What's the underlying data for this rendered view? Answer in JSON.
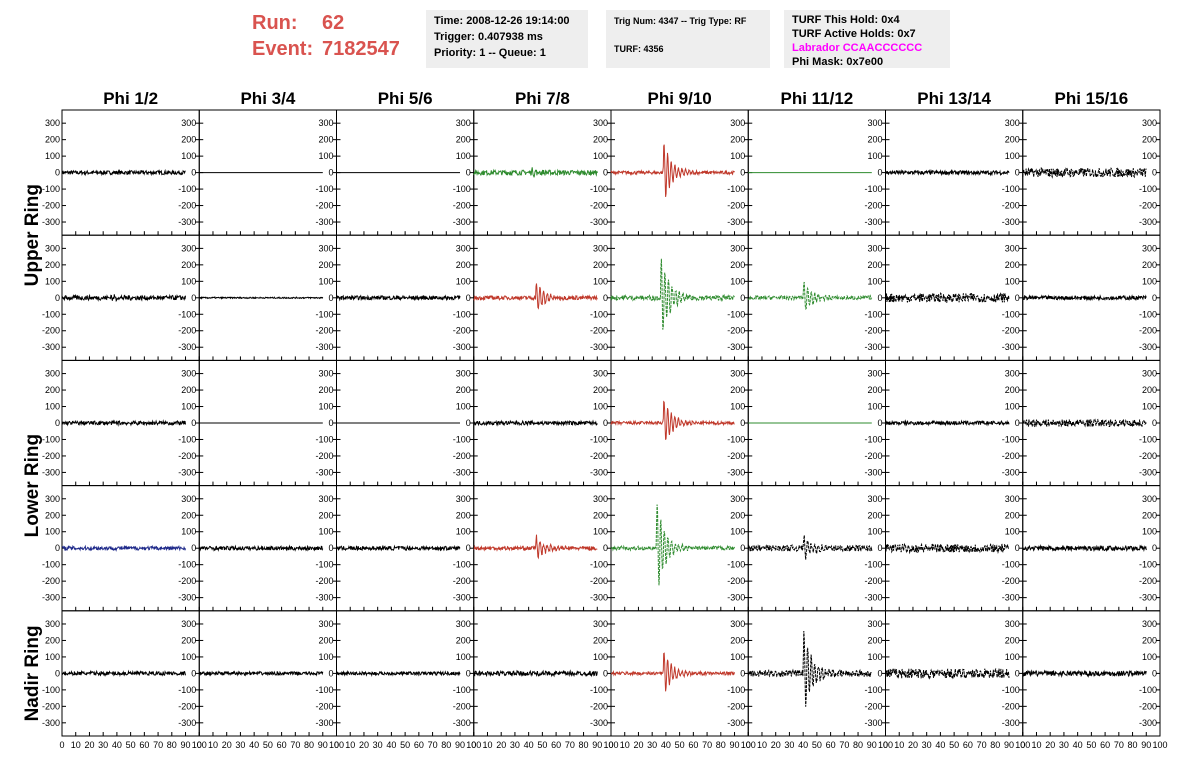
{
  "header": {
    "run_label": "Run:",
    "run_value": "62",
    "event_label": "Event:",
    "event_value": "7182547",
    "time": "Time: 2008-12-26 19:14:00",
    "trigger": "Trigger: 0.407938 ms",
    "priority": "Priority: 1 -- Queue: 1",
    "trig_num": "Trig Num: 4347 -- Trig Type: RF",
    "turf": "TURF: 4356",
    "turf_hold": "TURF This Hold: 0x4",
    "turf_active": "TURF Active Holds: 0x7",
    "labrador": "Labrador CCAACCCCCC",
    "phi_mask": "Phi Mask: 0x7e00"
  },
  "colors": {
    "accent": "#d9534f",
    "magenta": "#ff00ff",
    "black": "#000000",
    "red": "#c0392b",
    "green": "#2e8b2e",
    "blue": "#1f2a8a"
  },
  "chart_data": {
    "type": "line",
    "columns": [
      "Phi 1/2",
      "Phi 3/4",
      "Phi 5/6",
      "Phi 7/8",
      "Phi 9/10",
      "Phi 11/12",
      "Phi 13/14",
      "Phi 15/16"
    ],
    "ring_labels": [
      "Upper Ring",
      "Lower Ring",
      "Nadir Ring"
    ],
    "ylim": [
      -380,
      380
    ],
    "xlim": [
      0,
      100
    ],
    "yticks": [
      -300,
      -200,
      -100,
      0,
      100,
      200,
      300
    ],
    "xticks": [
      0,
      10,
      20,
      30,
      40,
      50,
      60,
      70,
      80,
      90,
      100
    ],
    "xtick_labels": [
      "0",
      "10",
      "20",
      "30",
      "40",
      "50",
      "60",
      "70",
      "80",
      "90",
      "100"
    ],
    "panels": [
      [
        {
          "color": "black",
          "style": "solid",
          "noise": 12,
          "pulse": 0,
          "pulse_t": 45
        },
        {
          "color": "black",
          "style": "solid",
          "noise": 0,
          "pulse": 0,
          "pulse_t": 45
        },
        {
          "color": "black",
          "style": "solid",
          "noise": 0,
          "pulse": 0,
          "pulse_t": 45
        },
        {
          "color": "green",
          "style": "solid",
          "noise": 15,
          "pulse": 20,
          "pulse_t": 42
        },
        {
          "color": "red",
          "style": "solid",
          "noise": 10,
          "pulse": 200,
          "pulse_t": 38
        },
        {
          "color": "green",
          "style": "solid",
          "noise": 0,
          "pulse": 0,
          "pulse_t": 45
        },
        {
          "color": "black",
          "style": "solid",
          "noise": 12,
          "pulse": 0,
          "pulse_t": 45
        },
        {
          "color": "black",
          "style": "dashed",
          "noise": 28,
          "pulse": 0,
          "pulse_t": 45
        }
      ],
      [
        {
          "color": "black",
          "style": "solid",
          "noise": 14,
          "pulse": 15,
          "pulse_t": 35
        },
        {
          "color": "black",
          "style": "solid",
          "noise": 4,
          "pulse": 0,
          "pulse_t": 45
        },
        {
          "color": "black",
          "style": "solid",
          "noise": 12,
          "pulse": 0,
          "pulse_t": 45
        },
        {
          "color": "red",
          "style": "solid",
          "noise": 12,
          "pulse": 100,
          "pulse_t": 45
        },
        {
          "color": "green",
          "style": "dashed",
          "noise": 15,
          "pulse": 280,
          "pulse_t": 36
        },
        {
          "color": "green",
          "style": "dashed",
          "noise": 12,
          "pulse": 110,
          "pulse_t": 40
        },
        {
          "color": "black",
          "style": "dashed",
          "noise": 28,
          "pulse": 0,
          "pulse_t": 45
        },
        {
          "color": "black",
          "style": "solid",
          "noise": 12,
          "pulse": 0,
          "pulse_t": 45
        }
      ],
      [
        {
          "color": "black",
          "style": "solid",
          "noise": 12,
          "pulse": 0,
          "pulse_t": 45
        },
        {
          "color": "black",
          "style": "solid",
          "noise": 0,
          "pulse": 0,
          "pulse_t": 45
        },
        {
          "color": "black",
          "style": "solid",
          "noise": 0,
          "pulse": 0,
          "pulse_t": 45
        },
        {
          "color": "black",
          "style": "solid",
          "noise": 12,
          "pulse": 0,
          "pulse_t": 45
        },
        {
          "color": "red",
          "style": "solid",
          "noise": 10,
          "pulse": 160,
          "pulse_t": 38
        },
        {
          "color": "green",
          "style": "solid",
          "noise": 0,
          "pulse": 0,
          "pulse_t": 45
        },
        {
          "color": "black",
          "style": "solid",
          "noise": 12,
          "pulse": 0,
          "pulse_t": 45
        },
        {
          "color": "black",
          "style": "dashed",
          "noise": 22,
          "pulse": 0,
          "pulse_t": 45
        }
      ],
      [
        {
          "color": "blue",
          "style": "solid",
          "noise": 12,
          "pulse": 0,
          "pulse_t": 45
        },
        {
          "color": "black",
          "style": "solid",
          "noise": 12,
          "pulse": 0,
          "pulse_t": 45
        },
        {
          "color": "black",
          "style": "solid",
          "noise": 12,
          "pulse": 0,
          "pulse_t": 45
        },
        {
          "color": "red",
          "style": "solid",
          "noise": 12,
          "pulse": 80,
          "pulse_t": 45
        },
        {
          "color": "green",
          "style": "dashed",
          "noise": 12,
          "pulse": 300,
          "pulse_t": 33
        },
        {
          "color": "black",
          "style": "dashed",
          "noise": 18,
          "pulse": 80,
          "pulse_t": 40
        },
        {
          "color": "black",
          "style": "dashed",
          "noise": 26,
          "pulse": 0,
          "pulse_t": 45
        },
        {
          "color": "black",
          "style": "solid",
          "noise": 14,
          "pulse": 0,
          "pulse_t": 45
        }
      ],
      [
        {
          "color": "black",
          "style": "solid",
          "noise": 12,
          "pulse": 0,
          "pulse_t": 45
        },
        {
          "color": "black",
          "style": "solid",
          "noise": 10,
          "pulse": 0,
          "pulse_t": 45
        },
        {
          "color": "black",
          "style": "solid",
          "noise": 10,
          "pulse": 0,
          "pulse_t": 45
        },
        {
          "color": "black",
          "style": "solid",
          "noise": 14,
          "pulse": 0,
          "pulse_t": 45
        },
        {
          "color": "red",
          "style": "solid",
          "noise": 10,
          "pulse": 150,
          "pulse_t": 38
        },
        {
          "color": "black",
          "style": "dashed",
          "noise": 20,
          "pulse": 280,
          "pulse_t": 40
        },
        {
          "color": "black",
          "style": "dashed",
          "noise": 30,
          "pulse": 0,
          "pulse_t": 45
        },
        {
          "color": "black",
          "style": "solid",
          "noise": 16,
          "pulse": 0,
          "pulse_t": 45
        }
      ]
    ]
  }
}
